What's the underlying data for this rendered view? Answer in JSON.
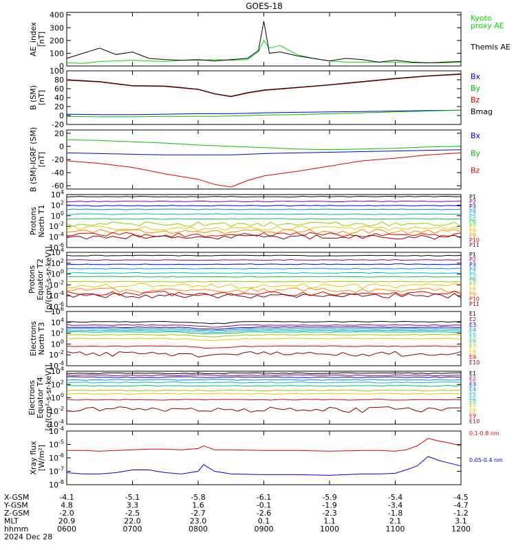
{
  "title": "GOES-18",
  "date_label": "2024 Dec 28",
  "time_axis": {
    "x_range": [
      "2024-12-28 06:00",
      "2024-12-28 12:00"
    ],
    "rows": [
      {
        "label": "X-GSM",
        "values": [
          "-4.1",
          "-5.1",
          "-5.8",
          "-6.1",
          "-5.9",
          "-5.4",
          "-4.5"
        ]
      },
      {
        "label": "Y-GSM",
        "values": [
          "4.8",
          "3.3",
          "1.6",
          "-0.1",
          "-1.9",
          "-3.4",
          "-4.7"
        ]
      },
      {
        "label": "Z-GSM",
        "values": [
          "-2.0",
          "-2.5",
          "-2.7",
          "-2.6",
          "-2.3",
          "-1.8",
          "-1.2"
        ]
      },
      {
        "label": "MLT",
        "values": [
          "20.9",
          "22.0",
          "23.0",
          "0.1",
          "1.1",
          "2.1",
          "3.1"
        ]
      },
      {
        "label": "hhmm",
        "values": [
          "0600",
          "0700",
          "0800",
          "0900",
          "1000",
          "1100",
          "1200"
        ]
      }
    ]
  },
  "chart_data": [
    {
      "type": "line",
      "id": "ae",
      "ylabel": [
        "AE_index",
        "[nT]"
      ],
      "ylim": [
        0,
        420
      ],
      "yticks": [
        0,
        100,
        200,
        300,
        400
      ],
      "x": [
        "06:00",
        "06:15",
        "06:30",
        "06:45",
        "07:00",
        "07:15",
        "07:30",
        "07:45",
        "08:00",
        "08:15",
        "08:30",
        "08:45",
        "08:55",
        "09:00",
        "09:05",
        "09:15",
        "09:30",
        "09:45",
        "10:00",
        "10:15",
        "10:30",
        "10:45",
        "11:00",
        "11:15",
        "11:30",
        "11:45",
        "12:00"
      ],
      "series": [
        {
          "name": "Kyoto proxy AE",
          "color": "#00e000",
          "values": [
            25,
            20,
            35,
            40,
            45,
            40,
            35,
            45,
            45,
            50,
            45,
            50,
            110,
            200,
            140,
            160,
            90,
            60,
            40,
            30,
            30,
            30,
            30,
            25,
            25,
            25,
            30
          ]
        },
        {
          "name": "Themis AE",
          "color": "#000000",
          "values": [
            60,
            100,
            140,
            90,
            110,
            60,
            50,
            45,
            50,
            40,
            50,
            60,
            120,
            350,
            100,
            110,
            80,
            60,
            40,
            60,
            50,
            30,
            45,
            30,
            25,
            30,
            35
          ]
        }
      ]
    },
    {
      "type": "line",
      "id": "bsm",
      "ylabel": [
        "B (SM)",
        "[nT]"
      ],
      "ylim": [
        -20,
        100
      ],
      "yticks": [
        -20,
        0,
        20,
        40,
        60,
        80,
        100
      ],
      "x": [
        "06:00",
        "06:30",
        "07:00",
        "07:30",
        "08:00",
        "08:15",
        "08:30",
        "08:45",
        "09:00",
        "09:30",
        "10:00",
        "10:30",
        "11:00",
        "11:30",
        "12:00"
      ],
      "series": [
        {
          "name": "Bx",
          "color": "#0000dd",
          "values": [
            3,
            2,
            2,
            3,
            4,
            4,
            4,
            5,
            6,
            7,
            8,
            9,
            10,
            11,
            12
          ]
        },
        {
          "name": "By",
          "color": "#00c000",
          "values": [
            -2,
            -3,
            -3,
            -2,
            -2,
            -2,
            -1,
            0,
            1,
            2,
            4,
            6,
            8,
            10,
            12
          ]
        },
        {
          "name": "Bz",
          "color": "#dd0000",
          "values": [
            79,
            75,
            66,
            65,
            58,
            48,
            42,
            50,
            56,
            62,
            68,
            75,
            82,
            88,
            92
          ]
        },
        {
          "name": "Bmag",
          "color": "#000000",
          "values": [
            80,
            76,
            67,
            66,
            59,
            49,
            43,
            51,
            57,
            63,
            69,
            76,
            83,
            89,
            93
          ]
        }
      ]
    },
    {
      "type": "line",
      "id": "bdiff",
      "ylabel": [
        "B (SM)-IGRF (SM)",
        "[nT]"
      ],
      "ylim": [
        -65,
        25
      ],
      "yticks": [
        -60,
        -40,
        -20,
        0,
        20
      ],
      "x": [
        "06:00",
        "06:30",
        "07:00",
        "07:30",
        "08:00",
        "08:15",
        "08:30",
        "08:45",
        "09:00",
        "09:30",
        "10:00",
        "10:30",
        "11:00",
        "11:30",
        "12:00"
      ],
      "series": [
        {
          "name": "Bx",
          "color": "#0000dd",
          "values": [
            -10,
            -11,
            -12,
            -13,
            -13,
            -13,
            -13,
            -12,
            -11,
            -10,
            -9,
            -8,
            -7,
            -6,
            -5
          ]
        },
        {
          "name": "By",
          "color": "#00c000",
          "values": [
            10,
            9,
            7,
            5,
            2,
            1,
            0,
            -1,
            -2,
            -4,
            -5,
            -4,
            -3,
            -1,
            0
          ]
        },
        {
          "name": "Bz",
          "color": "#dd0000",
          "values": [
            -22,
            -26,
            -32,
            -42,
            -50,
            -58,
            -62,
            -52,
            -45,
            -38,
            -30,
            -22,
            -18,
            -13,
            -10
          ]
        }
      ]
    },
    {
      "type": "line",
      "id": "pn",
      "log": true,
      "ylabel": [
        "Protons",
        "North T1"
      ],
      "ylim": [
        -6,
        4
      ],
      "yticks": [
        -6,
        -4,
        -2,
        0,
        2,
        4
      ],
      "x": [
        "06:00",
        "12:00"
      ],
      "series": [
        {
          "name": "P1",
          "color": "#000000",
          "level": 3.6
        },
        {
          "name": "P2",
          "color": "#8a008a",
          "level": 2.7
        },
        {
          "name": "P3",
          "color": "#0000dd",
          "level": 1.9
        },
        {
          "name": "P4",
          "color": "#0088ff",
          "level": 1.2
        },
        {
          "name": "P5",
          "color": "#00b8cc",
          "level": 0.3
        },
        {
          "name": "P6",
          "color": "#00c060",
          "level": -0.6
        },
        {
          "name": "P7",
          "color": "#a0c800",
          "level": -1.6
        },
        {
          "name": "P8",
          "color": "#e8c800",
          "level": -2.4
        },
        {
          "name": "P9",
          "color": "#ff8800",
          "level": -3.0
        },
        {
          "name": "P10",
          "color": "#dd0000",
          "level": -3.6
        },
        {
          "name": "P11",
          "color": "#880000",
          "level": -4.0
        }
      ]
    },
    {
      "type": "line",
      "id": "pe",
      "log": true,
      "ylabel": [
        "Protons",
        "Equator T2",
        "[p/(cm²-s-sr-keV)]"
      ],
      "ylim": [
        -6,
        4
      ],
      "yticks": [
        -6,
        -4,
        -2,
        0,
        2,
        4
      ],
      "x": [
        "06:00",
        "12:00"
      ],
      "series": [
        {
          "name": "P1",
          "color": "#000000",
          "level": 3.4
        },
        {
          "name": "P2",
          "color": "#8a008a",
          "level": 2.6
        },
        {
          "name": "P3",
          "color": "#0000dd",
          "level": 1.8
        },
        {
          "name": "P4",
          "color": "#0088ff",
          "level": 1.0
        },
        {
          "name": "P5",
          "color": "#00b8cc",
          "level": 0.2
        },
        {
          "name": "P6",
          "color": "#00c060",
          "level": -0.5
        },
        {
          "name": "P7",
          "color": "#a0c800",
          "level": -1.4
        },
        {
          "name": "P8",
          "color": "#e8c800",
          "level": -2.2
        },
        {
          "name": "P9",
          "color": "#ff8800",
          "level": -3.0
        },
        {
          "name": "P10",
          "color": "#dd0000",
          "level": -3.6
        },
        {
          "name": "P11",
          "color": "#880000",
          "level": -4.0
        }
      ]
    },
    {
      "type": "line",
      "id": "en",
      "log": true,
      "ylabel": [
        "Electrons",
        "North T3"
      ],
      "ylim": [
        -4,
        6
      ],
      "yticks": [
        -4,
        -2,
        0,
        2,
        4,
        6
      ],
      "x": [
        "06:00",
        "12:00"
      ],
      "series": [
        {
          "name": "E1",
          "color": "#000000",
          "level": 4.1
        },
        {
          "name": "E2",
          "color": "#8a008a",
          "level": 3.5
        },
        {
          "name": "E3",
          "color": "#0000dd",
          "level": 3.1
        },
        {
          "name": "E4",
          "color": "#0088ff",
          "level": 2.8
        },
        {
          "name": "E5",
          "color": "#00b8cc",
          "level": 2.5
        },
        {
          "name": "E6",
          "color": "#00c060",
          "level": 2.2
        },
        {
          "name": "E7",
          "color": "#a0c800",
          "level": 1.7
        },
        {
          "name": "E8",
          "color": "#e8c800",
          "level": 1.0
        },
        {
          "name": "E9",
          "color": "#dd0000",
          "level": -0.4
        },
        {
          "name": "E10",
          "color": "#880000",
          "level": -1.8
        }
      ]
    },
    {
      "type": "line",
      "id": "ee",
      "log": true,
      "ylabel": [
        "Electrons",
        "Equator T4",
        "[e/(cm²-s-sr-keV)]"
      ],
      "ylim": [
        -4,
        4
      ],
      "yticks": [
        -4,
        -2,
        0,
        2,
        4
      ],
      "x": [
        "06:00",
        "12:00"
      ],
      "series": [
        {
          "name": "E1",
          "color": "#000000",
          "level": 3.7
        },
        {
          "name": "E2",
          "color": "#8a008a",
          "level": 3.4
        },
        {
          "name": "E3",
          "color": "#0000dd",
          "level": 3.1
        },
        {
          "name": "E4",
          "color": "#0088ff",
          "level": 2.7
        },
        {
          "name": "E5",
          "color": "#00b8cc",
          "level": 2.3
        },
        {
          "name": "E6",
          "color": "#00c060",
          "level": 1.8
        },
        {
          "name": "E7",
          "color": "#a0c800",
          "level": 1.1
        },
        {
          "name": "E8",
          "color": "#e8c800",
          "level": 0.6
        },
        {
          "name": "E9",
          "color": "#dd0000",
          "level": -0.3
        },
        {
          "name": "E10",
          "color": "#880000",
          "level": -1.8
        }
      ]
    },
    {
      "type": "line",
      "id": "xray",
      "log": true,
      "ylabel": [
        "Xray flux",
        "[W/m²]"
      ],
      "ylim": [
        -8,
        -4
      ],
      "yticks": [
        -8,
        -7,
        -6,
        -5,
        -4
      ],
      "x": [
        "06:00",
        "06:15",
        "06:30",
        "06:45",
        "07:00",
        "07:15",
        "07:30",
        "07:45",
        "08:00",
        "08:05",
        "08:15",
        "08:30",
        "09:00",
        "09:30",
        "10:00",
        "10:30",
        "10:45",
        "11:00",
        "11:10",
        "11:20",
        "11:30",
        "11:40",
        "11:50",
        "12:00"
      ],
      "series": [
        {
          "name": "0.1-0.8 nm",
          "color": "#dd0000",
          "values": [
            -5.45,
            -5.45,
            -5.5,
            -5.45,
            -5.4,
            -5.35,
            -5.35,
            -5.4,
            -5.3,
            -5.1,
            -5.4,
            -5.4,
            -5.45,
            -5.45,
            -5.5,
            -5.45,
            -5.45,
            -5.5,
            -5.4,
            -5.1,
            -4.55,
            -4.75,
            -4.9,
            -5.1
          ]
        },
        {
          "name": "0.05-0.4 nm",
          "color": "#0000dd",
          "values": [
            -7.1,
            -7.2,
            -7.2,
            -7.1,
            -6.9,
            -6.9,
            -7.1,
            -7.2,
            -7.0,
            -6.5,
            -7.0,
            -7.2,
            -7.25,
            -7.25,
            -7.3,
            -7.2,
            -7.2,
            -7.15,
            -6.9,
            -6.6,
            -5.9,
            -6.2,
            -6.4,
            -6.6
          ]
        }
      ]
    }
  ]
}
